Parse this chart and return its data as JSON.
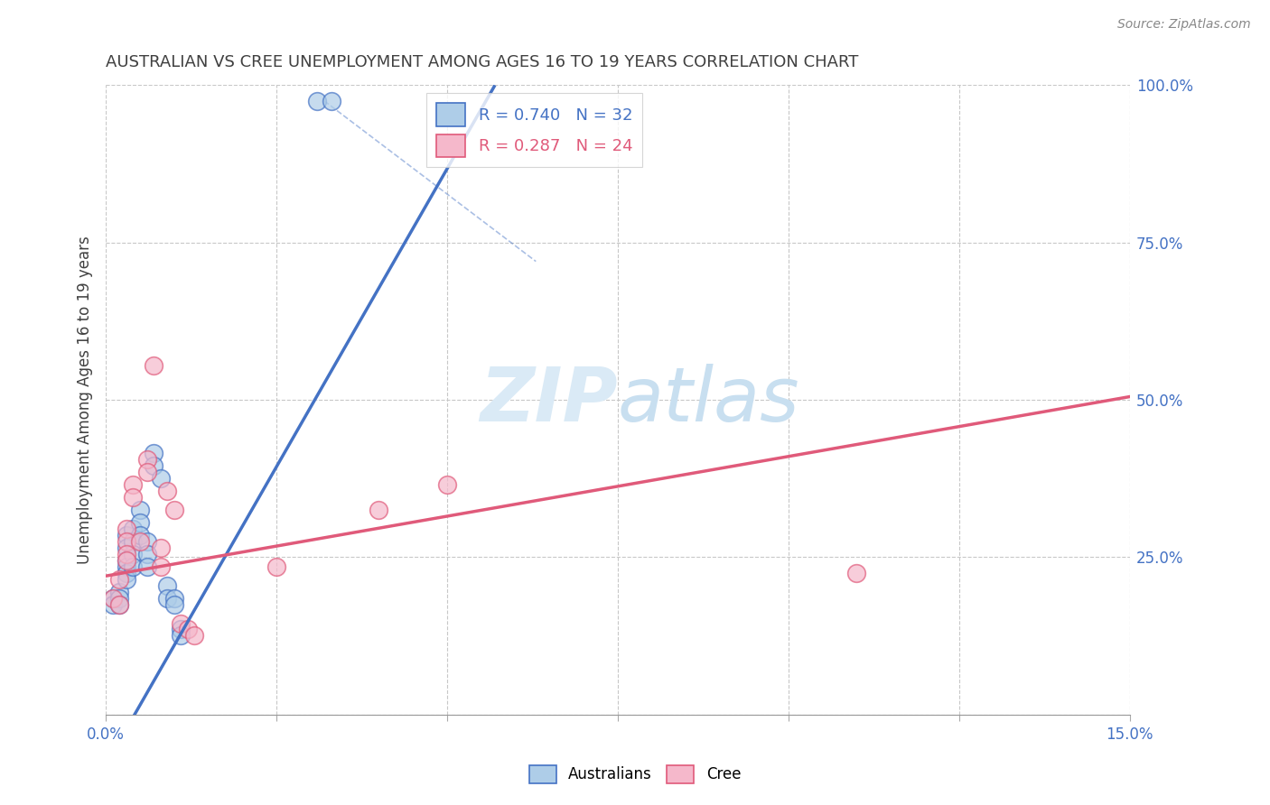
{
  "title": "AUSTRALIAN VS CREE UNEMPLOYMENT AMONG AGES 16 TO 19 YEARS CORRELATION CHART",
  "source": "Source: ZipAtlas.com",
  "ylabel": "Unemployment Among Ages 16 to 19 years",
  "xlim": [
    0.0,
    0.15
  ],
  "ylim": [
    0.0,
    1.0
  ],
  "xticks": [
    0.0,
    0.025,
    0.05,
    0.075,
    0.1,
    0.125,
    0.15
  ],
  "yticks": [
    0.0,
    0.25,
    0.5,
    0.75,
    1.0
  ],
  "yticklabels_right": [
    "",
    "25.0%",
    "50.0%",
    "75.0%",
    "100.0%"
  ],
  "blue_dots": [
    [
      0.001,
      0.185
    ],
    [
      0.001,
      0.175
    ],
    [
      0.002,
      0.195
    ],
    [
      0.002,
      0.185
    ],
    [
      0.002,
      0.175
    ],
    [
      0.003,
      0.285
    ],
    [
      0.003,
      0.265
    ],
    [
      0.003,
      0.245
    ],
    [
      0.003,
      0.235
    ],
    [
      0.003,
      0.225
    ],
    [
      0.003,
      0.215
    ],
    [
      0.004,
      0.295
    ],
    [
      0.004,
      0.275
    ],
    [
      0.004,
      0.255
    ],
    [
      0.004,
      0.235
    ],
    [
      0.005,
      0.325
    ],
    [
      0.005,
      0.305
    ],
    [
      0.005,
      0.285
    ],
    [
      0.006,
      0.275
    ],
    [
      0.006,
      0.255
    ],
    [
      0.006,
      0.235
    ],
    [
      0.007,
      0.415
    ],
    [
      0.007,
      0.395
    ],
    [
      0.008,
      0.375
    ],
    [
      0.009,
      0.205
    ],
    [
      0.009,
      0.185
    ],
    [
      0.01,
      0.185
    ],
    [
      0.01,
      0.175
    ],
    [
      0.011,
      0.135
    ],
    [
      0.011,
      0.125
    ],
    [
      0.031,
      0.975
    ],
    [
      0.033,
      0.975
    ]
  ],
  "pink_dots": [
    [
      0.001,
      0.185
    ],
    [
      0.002,
      0.175
    ],
    [
      0.002,
      0.215
    ],
    [
      0.003,
      0.295
    ],
    [
      0.003,
      0.275
    ],
    [
      0.003,
      0.255
    ],
    [
      0.003,
      0.245
    ],
    [
      0.004,
      0.365
    ],
    [
      0.004,
      0.345
    ],
    [
      0.005,
      0.275
    ],
    [
      0.006,
      0.405
    ],
    [
      0.006,
      0.385
    ],
    [
      0.007,
      0.555
    ],
    [
      0.008,
      0.265
    ],
    [
      0.008,
      0.235
    ],
    [
      0.009,
      0.355
    ],
    [
      0.01,
      0.325
    ],
    [
      0.011,
      0.145
    ],
    [
      0.012,
      0.135
    ],
    [
      0.013,
      0.125
    ],
    [
      0.025,
      0.235
    ],
    [
      0.04,
      0.325
    ],
    [
      0.05,
      0.365
    ],
    [
      0.11,
      0.225
    ]
  ],
  "blue_line_x": [
    0.0,
    0.057
  ],
  "blue_line_y": [
    -0.08,
    1.0
  ],
  "pink_line_x": [
    0.0,
    0.15
  ],
  "pink_line_y": [
    0.22,
    0.505
  ],
  "dash_line_x": [
    0.032,
    0.063
  ],
  "dash_line_y": [
    0.975,
    0.72
  ],
  "legend_blue_r": "R = 0.740",
  "legend_blue_n": "N = 32",
  "legend_pink_r": "R = 0.287",
  "legend_pink_n": "N = 24",
  "dot_color_blue": "#aecde8",
  "dot_color_pink": "#f5b8cb",
  "line_color_blue": "#4472c4",
  "line_color_pink": "#e05a7a",
  "background_color": "#ffffff",
  "grid_color": "#c8c8c8",
  "title_color": "#404040",
  "watermark_zip": "ZIP",
  "watermark_atlas": "atlas",
  "watermark_color": "#daeaf6"
}
